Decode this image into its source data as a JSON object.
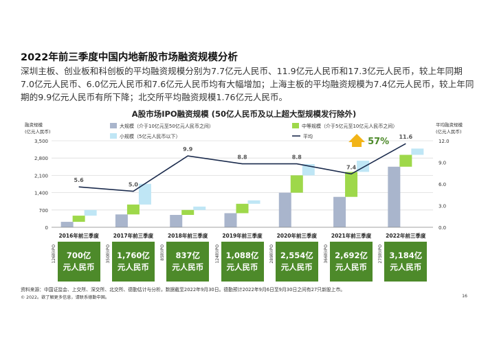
{
  "heading": "2022年前三季度中国内地新股市场融资规模分析",
  "paragraph": "深圳主板、创业板和科创板的平均融资规模分别为7.7亿元人民币、11.9亿元人民币和17.3亿元人民币，较上年同期7.0亿元人民币、6.0亿元人民币和7.6亿元人民币均有大幅增加；上海主板的平均融资规模为7.4亿元人民币，较上年同期的9.9亿元人民币有所下降；北交所平均融资规模1.76亿元人民币。",
  "chart_data": {
    "type": "waterfall-bar-line",
    "title": "A股市场IPO融资规模 (50亿人民币及以上超大型规模发行除外)",
    "ylabel_left": "融资规模\n(亿元人民币)",
    "ylabel_right": "平均融资规模\n(亿元人民币)",
    "left_ticks": [
      "3,500",
      "2,800",
      "2,100",
      "1,400",
      "700",
      "0"
    ],
    "right_ticks": [
      "12.0",
      "9.0",
      "6.0",
      "3.0",
      "0.0"
    ],
    "ylim_left": [
      0,
      3500
    ],
    "ylim_right": [
      0,
      12
    ],
    "categories": [
      "2016年前三季度",
      "2017年前三季度",
      "2018年前三季度",
      "2019年前三季度",
      "2020年前三季度",
      "2021年前三季度",
      "2022年前三季度"
    ],
    "series": [
      {
        "name": "大规模（介于10亿元至50亿元人民币之间）",
        "color": "#a9b5cc",
        "values": [
          220,
          520,
          500,
          570,
          1400,
          1230,
          2450
        ]
      },
      {
        "name": "中等规模（介于5亿元至10亿元人民币之间）",
        "color": "#9ed84a",
        "values": [
          250,
          400,
          200,
          380,
          700,
          1010,
          480
        ]
      },
      {
        "name": "小规模（5亿元人民币以下）",
        "color": "#bfe6f5",
        "values": [
          230,
          840,
          137,
          138,
          454,
          452,
          254
        ]
      }
    ],
    "line": {
      "name": "平均",
      "color": "#1a2a4c",
      "values": [
        5.6,
        5.0,
        9.9,
        8.8,
        8.8,
        7.4,
        11.6
      ],
      "labels": [
        "5.6",
        "5.0",
        "9.9",
        "8.8",
        "8.8",
        "7.4",
        "11.6"
      ]
    },
    "annotation": "57%",
    "ipo_counts": [
      "126宗IPO",
      "350宗IPO",
      "85宗IPO",
      "124宗IPO",
      "289宗IPO",
      "366宗IPO",
      "275宗IPO"
    ],
    "totals": [
      "700亿\n元人民币",
      "1,760亿\n元人民币",
      "837亿\n元人民币",
      "1,088亿\n元人民币",
      "2,554亿\n元人民币",
      "2,692亿\n元人民币",
      "3,184亿\n元人民币"
    ]
  },
  "source": "资料来源：中国证监会、上交所、深交所、北交所、德勤估计与分析，数据截至2022年9月30日。德勤预计2022年9月6日至9月30日之间有27只新股上市。",
  "copyright": "© 2022。欲了解更多信息，请联系德勤中国。",
  "page_number": "16"
}
